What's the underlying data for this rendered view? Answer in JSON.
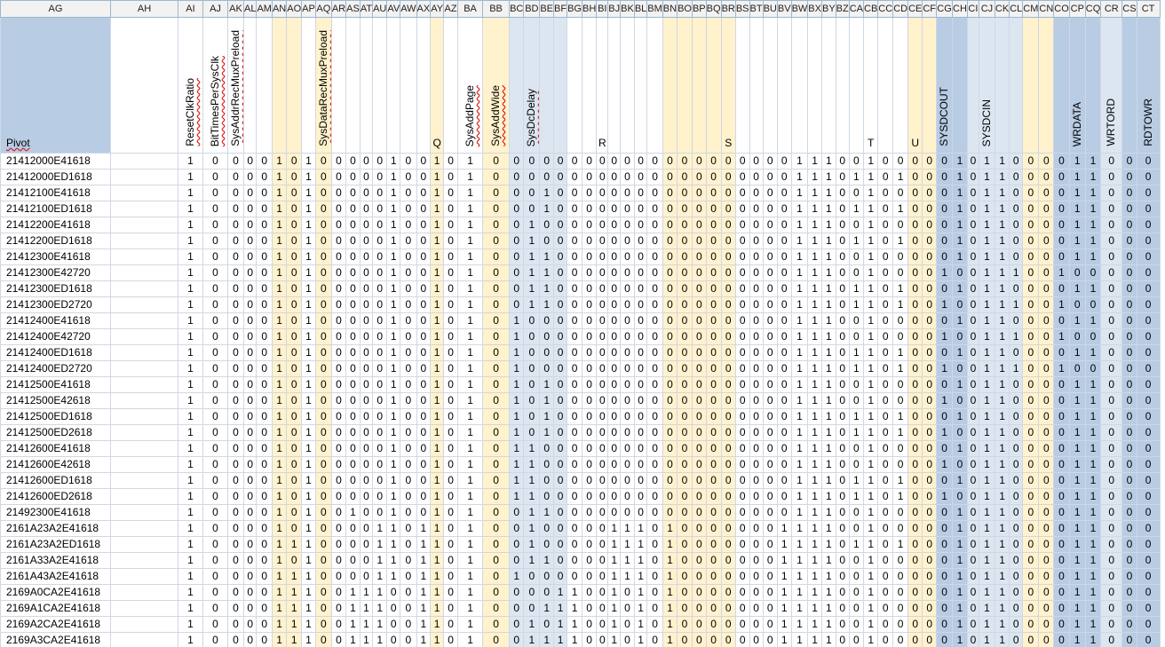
{
  "columns": [
    "AG",
    "AH",
    "AI",
    "AJ",
    "AK",
    "AL",
    "AM",
    "AN",
    "AO",
    "AP",
    "AQ",
    "AR",
    "AS",
    "AT",
    "AU",
    "AV",
    "AW",
    "AX",
    "AY",
    "AZ",
    "BA",
    "BB",
    "BC",
    "BD",
    "BE",
    "BF",
    "BG",
    "BH",
    "BI",
    "BJ",
    "BK",
    "BL",
    "BM",
    "BN",
    "BO",
    "BP",
    "BQ",
    "BR",
    "BS",
    "BT",
    "BU",
    "BV",
    "BW",
    "BX",
    "BY",
    "BZ",
    "CA",
    "CB",
    "CC",
    "CD",
    "CE",
    "CF",
    "CG",
    "CH",
    "CI",
    "CJ",
    "CK",
    "CL",
    "CM",
    "CN",
    "CO",
    "CP",
    "CQ",
    "CR",
    "CS",
    "CT"
  ],
  "headers": {
    "AG": "Pivot",
    "AI": "ResetClkRatio",
    "AJ": "BitTimesPerSysClk",
    "AK": "SysAddrRecMuxPreload",
    "AQ": "SysDataRecMuxPreload",
    "AY": "Q",
    "BA": "SysAddPage",
    "BB": "SysAddWide",
    "BD": "SysDcDelay",
    "BI": "R",
    "BR": "S",
    "CB": "T",
    "CE": "U",
    "CG": "SYSDCOUT",
    "CJ": "SYSDCIN",
    "CP": "WRDATA",
    "CR": "WRTORD",
    "CT": "RDTOWR"
  },
  "colors": {
    "yellow": "#fff2cc",
    "light_blue": "#dce6f1",
    "dark_blue": "#b8cce4",
    "grid": "#d0d7e5",
    "header_bg": "#f2f2f2"
  },
  "rows": [
    {
      "pivot": "21412000E41618",
      "bits": "001000010100000100101000000000000000000000111001000001011000011000"
    },
    {
      "pivot": "21412000ED1618",
      "bits": "001000010100000100101000000000000000000000111011010001011000011000"
    },
    {
      "pivot": "21412100E41618",
      "bits": "001000010100000100101000100000000000000000111001000001011000011000"
    },
    {
      "pivot": "21412100ED1618",
      "bits": "001000010100000100101000100000000000000000111011010001011000011000"
    },
    {
      "pivot": "21412200E41618",
      "bits": "001000010100000100101001000000000000000000111001000001011000011000"
    },
    {
      "pivot": "21412200ED1618",
      "bits": "001000010100000100101001000000000000000000111011010001011000011000"
    },
    {
      "pivot": "21412300E41618",
      "bits": "001000010100000100101001100000000000000000111001000001011000011000"
    },
    {
      "pivot": "21412300E42720",
      "bits": "001000010100000100101001100000000000000000111001000010011100100000"
    },
    {
      "pivot": "21412300ED1618",
      "bits": "001000010100000100101001100000000000000000111011010001011000011000"
    },
    {
      "pivot": "21412300ED2720",
      "bits": "001000010100000100101001100000000000000000111011010010011100100000"
    },
    {
      "pivot": "21412400E41618",
      "bits": "001000010100000100101010000000000000000000111001000001011000011000"
    },
    {
      "pivot": "21412400E42720",
      "bits": "001000010100000100101010000000000000000000111001000010011100100000"
    },
    {
      "pivot": "21412400ED1618",
      "bits": "001000010100000100101010000000000000000000111011010001011000011000"
    },
    {
      "pivot": "21412400ED2720",
      "bits": "001000010100000100101010000000000000000000111011010010011100100000"
    },
    {
      "pivot": "21412500E41618",
      "bits": "001000010100000100101010100000000000000000111001000001011000011000"
    },
    {
      "pivot": "21412500E42618",
      "bits": "001000010100000100101010100000000000000000111001000010011000011000"
    },
    {
      "pivot": "21412500ED1618",
      "bits": "001000010100000100101010100000000000000000111011010001011000011000"
    },
    {
      "pivot": "21412500ED2618",
      "bits": "001000010100000100101010100000000000000000111011010010011000011000"
    },
    {
      "pivot": "21412600E41618",
      "bits": "001000010100000100101011000000000000000000111001000001011000011000"
    },
    {
      "pivot": "21412600E42618",
      "bits": "001000010100000100101011000000000000000000111001000010011000011000"
    },
    {
      "pivot": "21412600ED1618",
      "bits": "001000010100000100101011000000000000000000111011010001011000011000"
    },
    {
      "pivot": "21412600ED2618",
      "bits": "001000010100000100101011000000000000000000111011010010011000011000"
    },
    {
      "pivot": "21492300E41618",
      "bits": "001000010100100100101001100000000000000000111001000001011000011000"
    },
    {
      "pivot": "2161A23A2E41618",
      "bits": "001000010100001101101001000001110100000001111001000001011000011000"
    },
    {
      "pivot": "2161A23A2ED1618",
      "bits": "001000011100001101101001000001110100000001111011010001011000011000"
    },
    {
      "pivot": "2161A33A2E41618",
      "bits": "001000010100001101101001100001110100000001111001000001011000011000"
    },
    {
      "pivot": "2161A43A2E41618",
      "bits": "001000011100001101101010000001110100000001111001000001011000011000"
    },
    {
      "pivot": "2169A0CA2E41618",
      "bits": "001000011100111001101000011001010100000001111001000001011000011000"
    },
    {
      "pivot": "2169A1CA2E41618",
      "bits": "001000011100111001101000111001010100000001111001000001011000011000"
    },
    {
      "pivot": "2169A2CA2E41618",
      "bits": "001000011100111001101001011001010100000001111001000001011000011000"
    },
    {
      "pivot": "2169A3CA2E41618",
      "bits": "001000011100111001101001111001010100000001111001000001011000011000"
    }
  ]
}
